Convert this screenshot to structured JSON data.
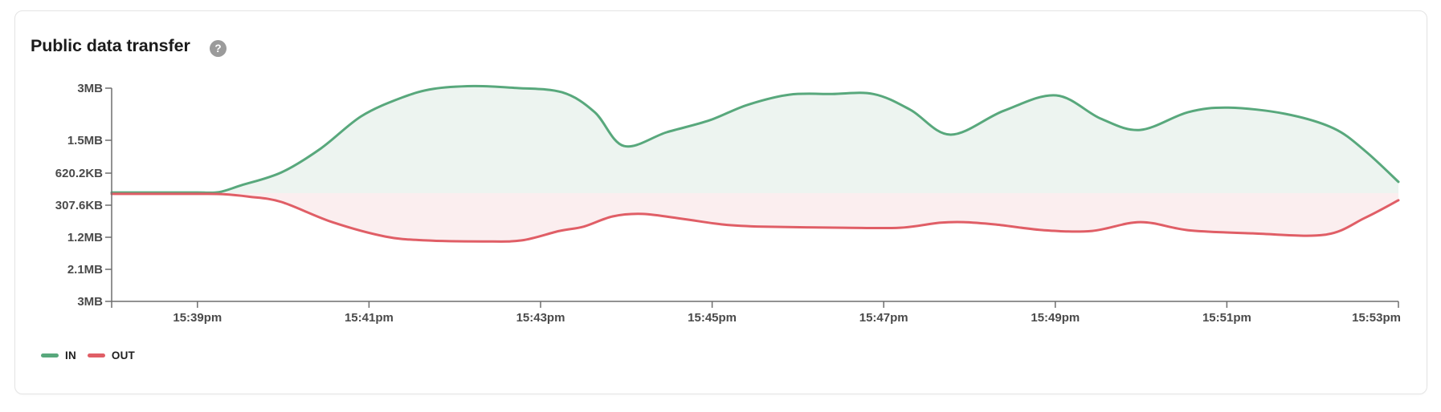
{
  "card": {
    "title": "Public data transfer",
    "help_icon": "?"
  },
  "legend": [
    {
      "id": "in",
      "label": "IN",
      "color": "#58A87C"
    },
    {
      "id": "out",
      "label": "OUT",
      "color": "#E05E66"
    }
  ],
  "chart_data": {
    "type": "area",
    "title": "Public data transfer",
    "description": "Mirrored area chart: IN traffic plotted upward, OUT traffic plotted downward from a shared zero baseline.",
    "grid": false,
    "legend_position": "bottom-left",
    "x_axis": {
      "unit": "time",
      "t_unit": "minutes from left edge of plot (span 0-15)",
      "tick_t": [
        1,
        3,
        5,
        7,
        9,
        11,
        13,
        15
      ],
      "tick_labels": [
        "15:39pm",
        "15:41pm",
        "15:43pm",
        "15:45pm",
        "15:47pm",
        "15:49pm",
        "15:51pm",
        "15:53pm"
      ]
    },
    "y_axis": {
      "unit": "bytes transferred",
      "zero_baseline": true,
      "up_max_mb": 3.07,
      "down_max_mb": 3.07,
      "tick_labels_up": [
        "3MB",
        "1.5MB",
        "620.2KB"
      ],
      "tick_labels_down": [
        "307.6KB",
        "1.2MB",
        "2.1MB",
        "3MB"
      ]
    },
    "series": [
      {
        "name": "IN",
        "direction": "up",
        "unit": "MB",
        "color": "#58A87C",
        "fill_color": "#EDF4F0",
        "points": [
          [
            0,
            0.02
          ],
          [
            0.5,
            0.02
          ],
          [
            1.0,
            0.02
          ],
          [
            1.25,
            0.03
          ],
          [
            1.51,
            0.23
          ],
          [
            1.98,
            0.61
          ],
          [
            2.44,
            1.31
          ],
          [
            2.91,
            2.25
          ],
          [
            3.38,
            2.79
          ],
          [
            3.75,
            3.05
          ],
          [
            4.22,
            3.13
          ],
          [
            4.69,
            3.08
          ],
          [
            5.25,
            2.95
          ],
          [
            5.63,
            2.37
          ],
          [
            5.97,
            1.38
          ],
          [
            6.47,
            1.78
          ],
          [
            6.97,
            2.13
          ],
          [
            7.41,
            2.58
          ],
          [
            7.9,
            2.88
          ],
          [
            8.4,
            2.9
          ],
          [
            8.88,
            2.9
          ],
          [
            9.31,
            2.44
          ],
          [
            9.78,
            1.71
          ],
          [
            10.4,
            2.41
          ],
          [
            11.01,
            2.86
          ],
          [
            11.53,
            2.18
          ],
          [
            11.99,
            1.85
          ],
          [
            12.55,
            2.37
          ],
          [
            13.02,
            2.5
          ],
          [
            13.68,
            2.32
          ],
          [
            14.24,
            1.9
          ],
          [
            14.61,
            1.24
          ],
          [
            15,
            0.33
          ]
        ]
      },
      {
        "name": "OUT",
        "direction": "down",
        "unit": "MB",
        "color": "#E05E66",
        "fill_color": "#FBEEEF",
        "points": [
          [
            0,
            0.02
          ],
          [
            0.5,
            0.02
          ],
          [
            1.0,
            0.02
          ],
          [
            1.3,
            0.03
          ],
          [
            1.6,
            0.1
          ],
          [
            1.98,
            0.25
          ],
          [
            2.57,
            0.82
          ],
          [
            3.19,
            1.23
          ],
          [
            3.66,
            1.34
          ],
          [
            4.32,
            1.37
          ],
          [
            4.78,
            1.34
          ],
          [
            5.22,
            1.07
          ],
          [
            5.5,
            0.95
          ],
          [
            5.84,
            0.66
          ],
          [
            6.19,
            0.59
          ],
          [
            6.66,
            0.73
          ],
          [
            7.13,
            0.89
          ],
          [
            7.59,
            0.95
          ],
          [
            8.53,
            0.98
          ],
          [
            9.19,
            0.98
          ],
          [
            9.65,
            0.84
          ],
          [
            9.93,
            0.82
          ],
          [
            10.31,
            0.89
          ],
          [
            10.87,
            1.05
          ],
          [
            11.43,
            1.07
          ],
          [
            11.99,
            0.82
          ],
          [
            12.55,
            1.05
          ],
          [
            13.3,
            1.14
          ],
          [
            14.14,
            1.18
          ],
          [
            14.61,
            0.7
          ],
          [
            15,
            0.2
          ]
        ]
      }
    ],
    "colors": {
      "axis_line": "#6E6E6E",
      "axis_label": "#4A4A4A"
    }
  }
}
